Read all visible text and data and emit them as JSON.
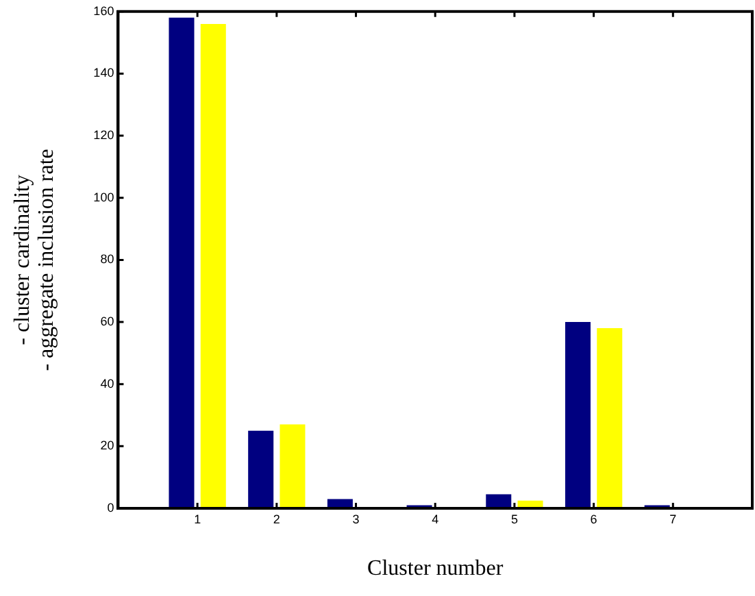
{
  "chart_data": {
    "type": "bar",
    "xlabel": "Cluster number",
    "ylabel": "- cluster cardinality\n- aggregate inclusion rate",
    "x": [
      1,
      2,
      3,
      4,
      5,
      6,
      7
    ],
    "xlim": [
      0,
      8
    ],
    "xticks": [
      1,
      2,
      3,
      4,
      5,
      6,
      7
    ],
    "ylim": [
      0,
      160
    ],
    "yticks": [
      0,
      20,
      40,
      60,
      80,
      100,
      120,
      140,
      160
    ],
    "grid": false,
    "legend": false,
    "series": [
      {
        "color": "#000080",
        "values": [
          158,
          25,
          3,
          1,
          4.5,
          60,
          1
        ]
      },
      {
        "color": "#ffff00",
        "values": [
          156,
          27,
          0,
          0,
          2.5,
          58,
          0
        ]
      }
    ]
  }
}
